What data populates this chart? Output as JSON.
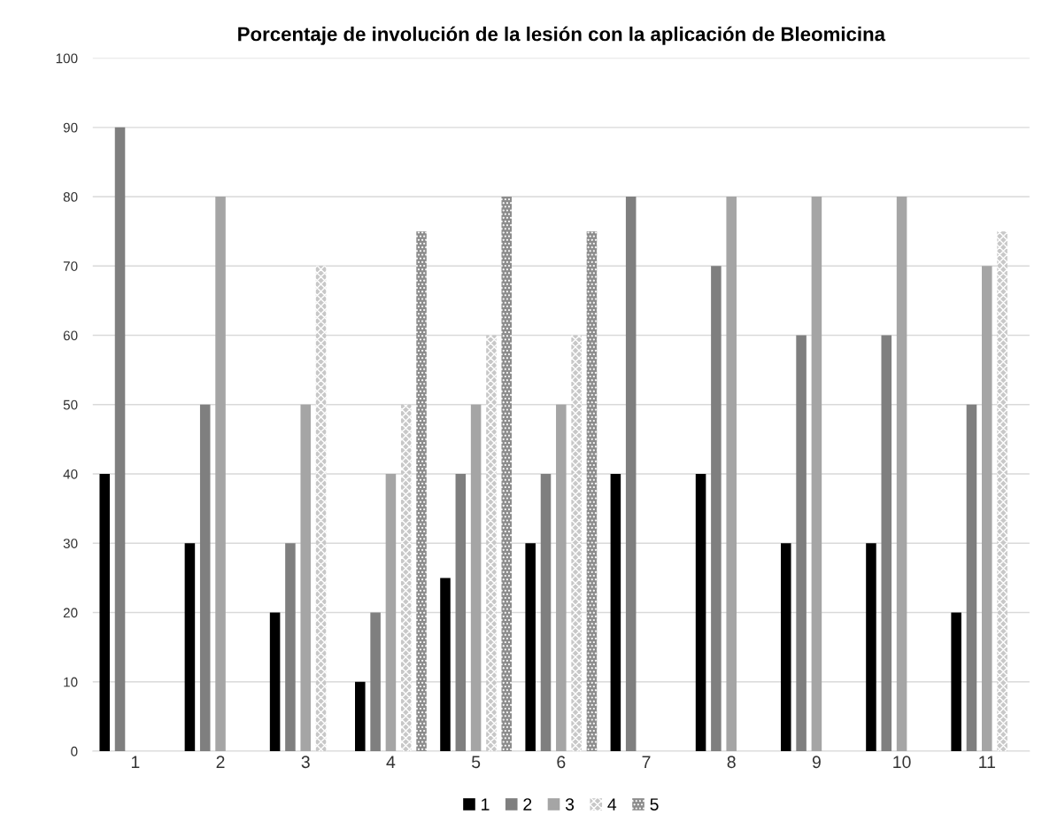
{
  "chart_data": {
    "type": "bar",
    "title": "Porcentaje de involución de la lesión con la aplicación de Bleomicina",
    "categories": [
      "1",
      "2",
      "3",
      "4",
      "5",
      "6",
      "7",
      "8",
      "9",
      "10",
      "11"
    ],
    "series": [
      {
        "name": "1",
        "color": "#000000",
        "values": [
          40,
          30,
          20,
          10,
          25,
          30,
          40,
          40,
          30,
          30,
          20
        ]
      },
      {
        "name": "2",
        "color": "#7f7f7f",
        "values": [
          90,
          50,
          30,
          20,
          40,
          40,
          80,
          70,
          60,
          60,
          50
        ]
      },
      {
        "name": "3",
        "color": "#a5a5a5",
        "values": [
          null,
          80,
          50,
          40,
          50,
          50,
          null,
          80,
          80,
          80,
          70
        ]
      },
      {
        "name": "4",
        "color": "#c8c8c8",
        "values": [
          null,
          null,
          70,
          50,
          60,
          60,
          null,
          null,
          null,
          null,
          75
        ]
      },
      {
        "name": "5",
        "color": "#8c8c8c",
        "values": [
          null,
          null,
          null,
          75,
          80,
          75,
          null,
          null,
          null,
          null,
          null
        ]
      }
    ],
    "ylim": [
      0,
      100
    ],
    "yticks": [
      0,
      10,
      20,
      30,
      40,
      50,
      60,
      70,
      80,
      90,
      100
    ],
    "grid": "y",
    "legend": "bottom"
  }
}
